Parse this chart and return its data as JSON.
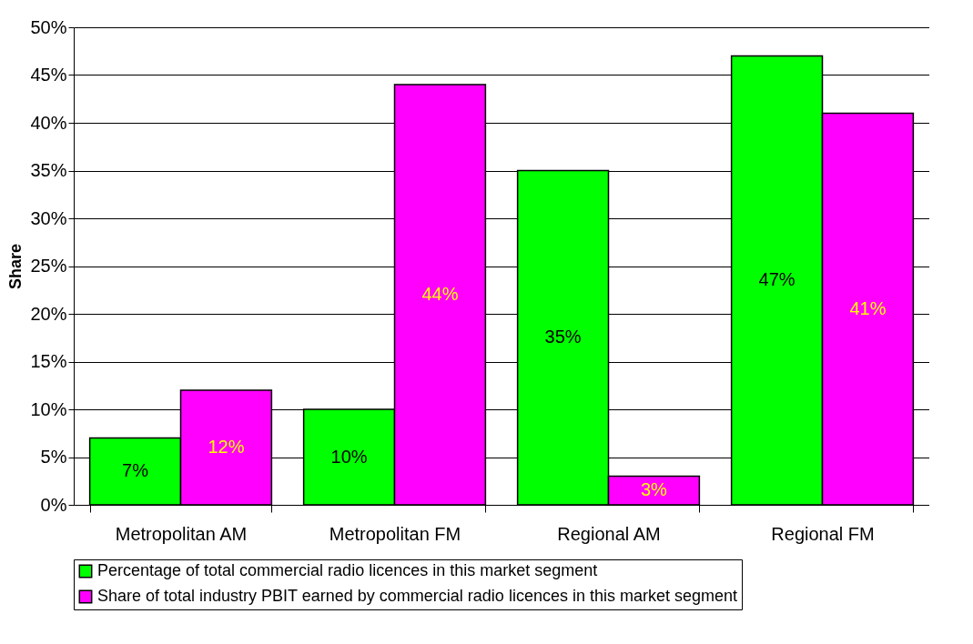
{
  "chart_data": {
    "type": "bar",
    "ylabel": "Share",
    "categories": [
      "Metropolitan AM",
      "Metropolitan FM",
      "Regional AM",
      "Regional FM"
    ],
    "series": [
      {
        "name": "Percentage of total commercial radio licences in this market segment",
        "color": "#00ff00",
        "values": [
          7,
          10,
          35,
          47
        ],
        "value_labels": [
          "7%",
          "10%",
          "35%",
          "47%"
        ]
      },
      {
        "name": "Share of total industry PBIT earned by commercial radio licences in this market segment",
        "color": "#ff00ff",
        "values": [
          12,
          44,
          3,
          41
        ],
        "value_labels": [
          "12%",
          "44%",
          "3%",
          "41%"
        ]
      }
    ],
    "ylim": [
      0,
      50
    ],
    "yticks": [
      {
        "value": 0,
        "label": "0%"
      },
      {
        "value": 5,
        "label": "5%"
      },
      {
        "value": 10,
        "label": "10%"
      },
      {
        "value": 15,
        "label": "15%"
      },
      {
        "value": 20,
        "label": "20%"
      },
      {
        "value": 25,
        "label": "25%"
      },
      {
        "value": 30,
        "label": "30%"
      },
      {
        "value": 35,
        "label": "35%"
      },
      {
        "value": 40,
        "label": "40%"
      },
      {
        "value": 45,
        "label": "45%"
      },
      {
        "value": 50,
        "label": "50%"
      }
    ],
    "grid": "y",
    "legend": "bottom"
  }
}
